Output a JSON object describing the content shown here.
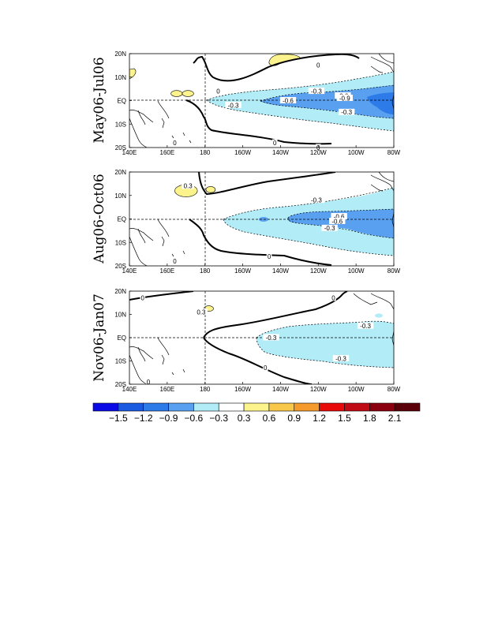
{
  "chart_data": {
    "type": "heatmap",
    "x_ticks": [
      "140E",
      "160E",
      "180",
      "160W",
      "140W",
      "120W",
      "100W",
      "80W"
    ],
    "y_ticks": [
      "20N",
      "10N",
      "EQ",
      "10S",
      "20S"
    ],
    "colorbar": {
      "labels": [
        "-1.5",
        "-1.2",
        "-0.9",
        "-0.6",
        "-0.3",
        "0.3",
        "0.6",
        "0.9",
        "1.2",
        "1.5",
        "1.8",
        "2.1"
      ],
      "colors": [
        "#0a0ae6",
        "#1a5ae0",
        "#2d7be8",
        "#5aa0f0",
        "#b2ecf7",
        "#ffffff",
        "#fcf38c",
        "#f7c84a",
        "#f59a2c",
        "#e80a0a",
        "#c00a14",
        "#8a0010",
        "#5a0008"
      ]
    },
    "panels": [
      {
        "title": "May06-Jul06",
        "contour_labels": [
          {
            "text": "0",
            "lon": -173,
            "lat": 4
          },
          {
            "text": "0",
            "lon": -120,
            "lat": 15
          },
          {
            "text": "0",
            "lon": 164,
            "lat": -18
          },
          {
            "text": "0",
            "lon": -143,
            "lat": -18
          },
          {
            "text": "0",
            "lon": -120,
            "lat": -20
          },
          {
            "text": "-0.3",
            "lon": -121,
            "lat": 4
          },
          {
            "text": "-0.3",
            "lon": -165,
            "lat": -2
          },
          {
            "text": "-0.3",
            "lon": -105,
            "lat": -5
          },
          {
            "text": "-0.6",
            "lon": -136,
            "lat": 0
          },
          {
            "text": "-0.6",
            "lon": -107,
            "lat": 2
          },
          {
            "text": "-0.9",
            "lon": -106,
            "lat": 1
          }
        ],
        "positive_patches": [
          {
            "lon": -144,
            "lat": 17,
            "rlon": 6,
            "rlat": 2
          },
          {
            "lon": 165,
            "lat": 3,
            "rlon": 3,
            "rlat": 1.3
          },
          {
            "lon": 171,
            "lat": 3,
            "rlon": 3,
            "rlat": 1.3
          }
        ]
      },
      {
        "title": "Aug06-Oct06",
        "contour_labels": [
          {
            "text": "0.3",
            "lon": 171,
            "lat": 14
          },
          {
            "text": "-0.3",
            "lon": -121,
            "lat": 8
          },
          {
            "text": "-0.3",
            "lon": -114,
            "lat": -4
          },
          {
            "text": "-0.6",
            "lon": -109,
            "lat": 1
          },
          {
            "text": "-0.6",
            "lon": -110,
            "lat": -1
          },
          {
            "text": "0",
            "lon": 164,
            "lat": -18
          },
          {
            "text": "0",
            "lon": -146,
            "lat": -16
          }
        ],
        "positive_patches": [
          {
            "lon": 170,
            "lat": 12,
            "rlon": 6,
            "rlat": 2.6
          },
          {
            "lon": -177,
            "lat": 12.5,
            "rlon": 2.5,
            "rlat": 1.3
          }
        ]
      },
      {
        "title": "Nov06-Jan07",
        "contour_labels": [
          {
            "text": "0",
            "lon": 147,
            "lat": 17
          },
          {
            "text": "0",
            "lon": -112,
            "lat": 17
          },
          {
            "text": "0",
            "lon": 150,
            "lat": -19
          },
          {
            "text": "0",
            "lon": -148,
            "lat": -13
          },
          {
            "text": "0.3",
            "lon": 178,
            "lat": 11
          },
          {
            "text": "-0.3",
            "lon": -95,
            "lat": 5
          },
          {
            "text": "-0.3",
            "lon": -145,
            "lat": 0
          },
          {
            "text": "-0.3",
            "lon": -108,
            "lat": -9
          }
        ],
        "positive_patches": [
          {
            "lon": -178,
            "lat": 12.5,
            "rlon": 2.5,
            "rlat": 1.2
          }
        ]
      }
    ]
  }
}
